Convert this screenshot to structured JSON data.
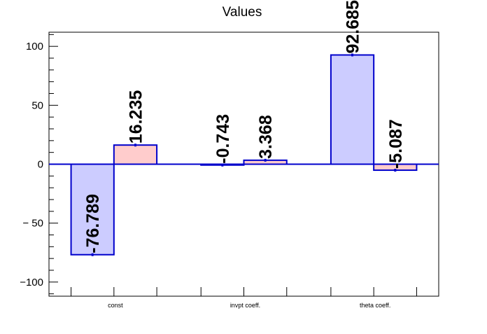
{
  "chart_data": {
    "type": "bar",
    "title": "Values",
    "xlabel": "",
    "ylabel": "",
    "ylim": [
      -112,
      112
    ],
    "yticks": [
      100,
      50,
      0,
      -50,
      -100
    ],
    "ytick_labels": [
      "100",
      "50",
      "0",
      "− 50",
      "−100"
    ],
    "categories": [
      "const",
      "invpt coeff.",
      "theta coeff."
    ],
    "series": [
      {
        "values": [
          -76.789,
          -0.743,
          92.685
        ],
        "labels": [
          "-76.789",
          "-0.743",
          "92.685"
        ],
        "fill": "#ccccff"
      },
      {
        "values": [
          16.235,
          3.368,
          -5.087
        ],
        "labels": [
          "16.235",
          "3.368",
          "-5.087"
        ],
        "fill": "#ffcccc"
      }
    ],
    "bar_outline": "#0000cc",
    "zero_line": "#0000cc",
    "grid": false,
    "legend": "none"
  }
}
